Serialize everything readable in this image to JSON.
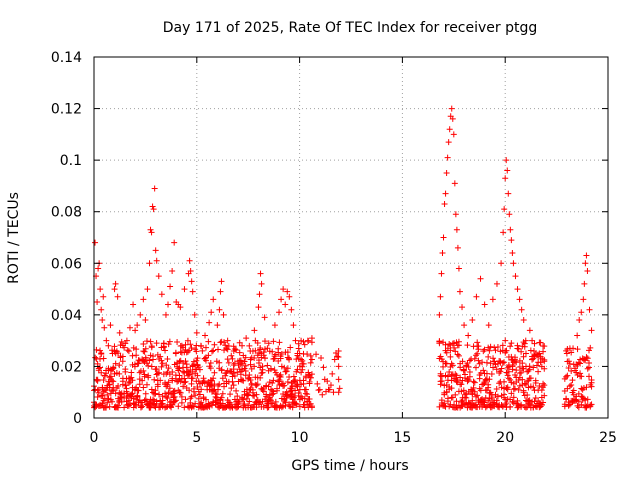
{
  "chart_data": {
    "type": "scatter",
    "title": "Day 171 of 2025, Rate Of TEC Index for receiver ptgg",
    "xlabel": "GPS time / hours",
    "ylabel": "ROTI / TECUs",
    "xlim": [
      0,
      25
    ],
    "ylim": [
      0,
      0.14
    ],
    "x_ticks": [
      0,
      5,
      10,
      15,
      20,
      25
    ],
    "y_ticks": [
      0,
      0.02,
      0.04,
      0.06,
      0.08,
      0.1,
      0.12,
      0.14
    ],
    "x_tick_labels": [
      "0",
      "5",
      "10",
      "15",
      "20",
      "25"
    ],
    "y_tick_labels": [
      "0",
      "0.02",
      "0.04",
      "0.06",
      "0.08",
      "0.1",
      "0.12",
      "0.14"
    ],
    "grid": true,
    "marker": "+",
    "color": "#ff0000",
    "series": [
      {
        "points": [
          [
            0.05,
            0.068
          ],
          [
            0.1,
            0.055
          ],
          [
            0.15,
            0.045
          ],
          [
            0.2,
            0.058
          ],
          [
            0.25,
            0.06
          ],
          [
            0.3,
            0.05
          ],
          [
            0.35,
            0.042
          ],
          [
            0.4,
            0.038
          ],
          [
            0.45,
            0.047
          ],
          [
            0.5,
            0.035
          ],
          [
            0.6,
            0.03
          ],
          [
            0.7,
            0.028
          ],
          [
            0.8,
            0.036
          ],
          [
            0.9,
            0.025
          ],
          [
            1.0,
            0.05
          ],
          [
            1.05,
            0.052
          ],
          [
            1.15,
            0.047
          ],
          [
            1.25,
            0.033
          ],
          [
            1.4,
            0.022
          ],
          [
            1.6,
            0.03
          ],
          [
            1.75,
            0.035
          ],
          [
            1.9,
            0.044
          ],
          [
            2.0,
            0.034
          ],
          [
            2.1,
            0.036
          ],
          [
            2.25,
            0.04
          ],
          [
            2.4,
            0.046
          ],
          [
            2.5,
            0.038
          ],
          [
            2.6,
            0.05
          ],
          [
            2.7,
            0.06
          ],
          [
            2.75,
            0.073
          ],
          [
            2.8,
            0.072
          ],
          [
            2.85,
            0.082
          ],
          [
            2.9,
            0.081
          ],
          [
            2.95,
            0.089
          ],
          [
            3.0,
            0.065
          ],
          [
            3.05,
            0.061
          ],
          [
            3.15,
            0.055
          ],
          [
            3.3,
            0.048
          ],
          [
            3.5,
            0.04
          ],
          [
            3.6,
            0.044
          ],
          [
            3.7,
            0.051
          ],
          [
            3.8,
            0.057
          ],
          [
            3.9,
            0.068
          ],
          [
            4.0,
            0.045
          ],
          [
            4.1,
            0.044
          ],
          [
            4.2,
            0.043
          ],
          [
            4.4,
            0.05
          ],
          [
            4.6,
            0.056
          ],
          [
            4.65,
            0.061
          ],
          [
            4.7,
            0.057
          ],
          [
            4.75,
            0.053
          ],
          [
            4.8,
            0.049
          ],
          [
            4.9,
            0.04
          ],
          [
            5.0,
            0.033
          ],
          [
            5.2,
            0.028
          ],
          [
            5.4,
            0.032
          ],
          [
            5.6,
            0.037
          ],
          [
            5.7,
            0.041
          ],
          [
            5.8,
            0.046
          ],
          [
            6.0,
            0.036
          ],
          [
            6.1,
            0.042
          ],
          [
            6.15,
            0.049
          ],
          [
            6.2,
            0.053
          ],
          [
            6.3,
            0.04
          ],
          [
            6.5,
            0.03
          ],
          [
            6.8,
            0.026
          ],
          [
            7.0,
            0.022
          ],
          [
            7.2,
            0.028
          ],
          [
            7.4,
            0.031
          ],
          [
            7.6,
            0.026
          ],
          [
            7.8,
            0.034
          ],
          [
            8.0,
            0.043
          ],
          [
            8.05,
            0.048
          ],
          [
            8.1,
            0.056
          ],
          [
            8.15,
            0.052
          ],
          [
            8.3,
            0.039
          ],
          [
            8.5,
            0.029
          ],
          [
            8.8,
            0.036
          ],
          [
            9.0,
            0.041
          ],
          [
            9.1,
            0.046
          ],
          [
            9.2,
            0.05
          ],
          [
            9.3,
            0.044
          ],
          [
            9.4,
            0.049
          ],
          [
            9.5,
            0.047
          ],
          [
            9.6,
            0.042
          ],
          [
            9.7,
            0.036
          ],
          [
            9.8,
            0.03
          ],
          [
            10.0,
            0.025
          ],
          [
            10.2,
            0.021
          ],
          [
            10.4,
            0.03
          ],
          [
            10.6,
            0.031
          ],
          [
            11.9,
            0.026
          ],
          [
            11.9,
            0.02
          ],
          [
            11.9,
            0.015
          ],
          [
            11.9,
            0.01
          ],
          [
            16.8,
            0.04
          ],
          [
            16.85,
            0.047
          ],
          [
            16.9,
            0.056
          ],
          [
            16.95,
            0.064
          ],
          [
            17.0,
            0.07
          ],
          [
            17.05,
            0.083
          ],
          [
            17.1,
            0.087
          ],
          [
            17.15,
            0.095
          ],
          [
            17.2,
            0.101
          ],
          [
            17.25,
            0.107
          ],
          [
            17.3,
            0.112
          ],
          [
            17.35,
            0.117
          ],
          [
            17.4,
            0.12
          ],
          [
            17.45,
            0.116
          ],
          [
            17.5,
            0.11
          ],
          [
            17.55,
            0.091
          ],
          [
            17.6,
            0.079
          ],
          [
            17.65,
            0.073
          ],
          [
            17.7,
            0.066
          ],
          [
            17.75,
            0.058
          ],
          [
            17.8,
            0.049
          ],
          [
            17.9,
            0.043
          ],
          [
            18.0,
            0.036
          ],
          [
            18.2,
            0.032
          ],
          [
            18.4,
            0.038
          ],
          [
            18.6,
            0.047
          ],
          [
            18.8,
            0.054
          ],
          [
            19.0,
            0.044
          ],
          [
            19.2,
            0.036
          ],
          [
            19.4,
            0.046
          ],
          [
            19.6,
            0.052
          ],
          [
            19.8,
            0.06
          ],
          [
            19.9,
            0.072
          ],
          [
            19.95,
            0.081
          ],
          [
            20.0,
            0.093
          ],
          [
            20.05,
            0.1
          ],
          [
            20.1,
            0.096
          ],
          [
            20.15,
            0.087
          ],
          [
            20.2,
            0.079
          ],
          [
            20.25,
            0.073
          ],
          [
            20.3,
            0.069
          ],
          [
            20.35,
            0.064
          ],
          [
            20.4,
            0.06
          ],
          [
            20.5,
            0.055
          ],
          [
            20.6,
            0.05
          ],
          [
            20.7,
            0.046
          ],
          [
            20.8,
            0.042
          ],
          [
            20.9,
            0.038
          ],
          [
            21.0,
            0.03
          ],
          [
            21.2,
            0.034
          ],
          [
            21.4,
            0.026
          ],
          [
            21.6,
            0.018
          ],
          [
            21.8,
            0.023
          ],
          [
            21.9,
            0.022
          ],
          [
            23.0,
            0.025
          ],
          [
            23.1,
            0.022
          ],
          [
            23.3,
            0.027
          ],
          [
            23.5,
            0.032
          ],
          [
            23.6,
            0.038
          ],
          [
            23.7,
            0.041
          ],
          [
            23.8,
            0.046
          ],
          [
            23.85,
            0.052
          ],
          [
            23.9,
            0.06
          ],
          [
            23.95,
            0.063
          ],
          [
            24.0,
            0.057
          ],
          [
            24.1,
            0.042
          ],
          [
            24.2,
            0.034
          ]
        ]
      }
    ],
    "dense_bands": [
      {
        "x": [
          0.0,
          10.6
        ],
        "y": [
          0.004,
          0.03
        ],
        "density": 0.75
      },
      {
        "x": [
          10.8,
          11.95
        ],
        "y": [
          0.008,
          0.026
        ],
        "density": 0.15
      },
      {
        "x": [
          16.8,
          21.9
        ],
        "y": [
          0.004,
          0.03
        ],
        "density": 0.8
      },
      {
        "x": [
          22.9,
          24.2
        ],
        "y": [
          0.004,
          0.028
        ],
        "density": 0.6
      }
    ]
  }
}
